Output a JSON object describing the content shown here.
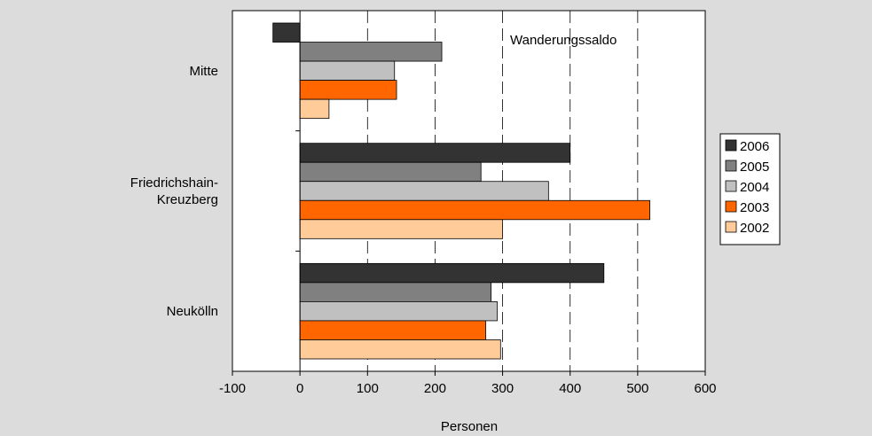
{
  "chart_data": {
    "type": "bar",
    "orientation": "horizontal",
    "title": "Wanderungssaldo",
    "xlabel": "Personen",
    "ylabel": "",
    "xlim": [
      -100,
      600
    ],
    "xticks": [
      "-100",
      "0",
      "100",
      "200",
      "300",
      "400",
      "500",
      "600"
    ],
    "xtick_values": [
      -100,
      0,
      100,
      200,
      300,
      400,
      500,
      600
    ],
    "grid": "vertical dashed",
    "legend_position": "right",
    "categories": [
      "Mitte",
      "Friedrichshain-\nKreuzberg",
      "Neukölln"
    ],
    "series": [
      {
        "name": "2006",
        "color": "#333333",
        "values": [
          -40,
          400,
          450
        ]
      },
      {
        "name": "2005",
        "color": "#808080",
        "values": [
          210,
          268,
          283
        ]
      },
      {
        "name": "2004",
        "color": "#c0c0c0",
        "values": [
          140,
          368,
          292
        ]
      },
      {
        "name": "2003",
        "color": "#ff6600",
        "values": [
          143,
          518,
          275
        ]
      },
      {
        "name": "2002",
        "color": "#ffcc99",
        "values": [
          43,
          300,
          297
        ]
      }
    ]
  }
}
